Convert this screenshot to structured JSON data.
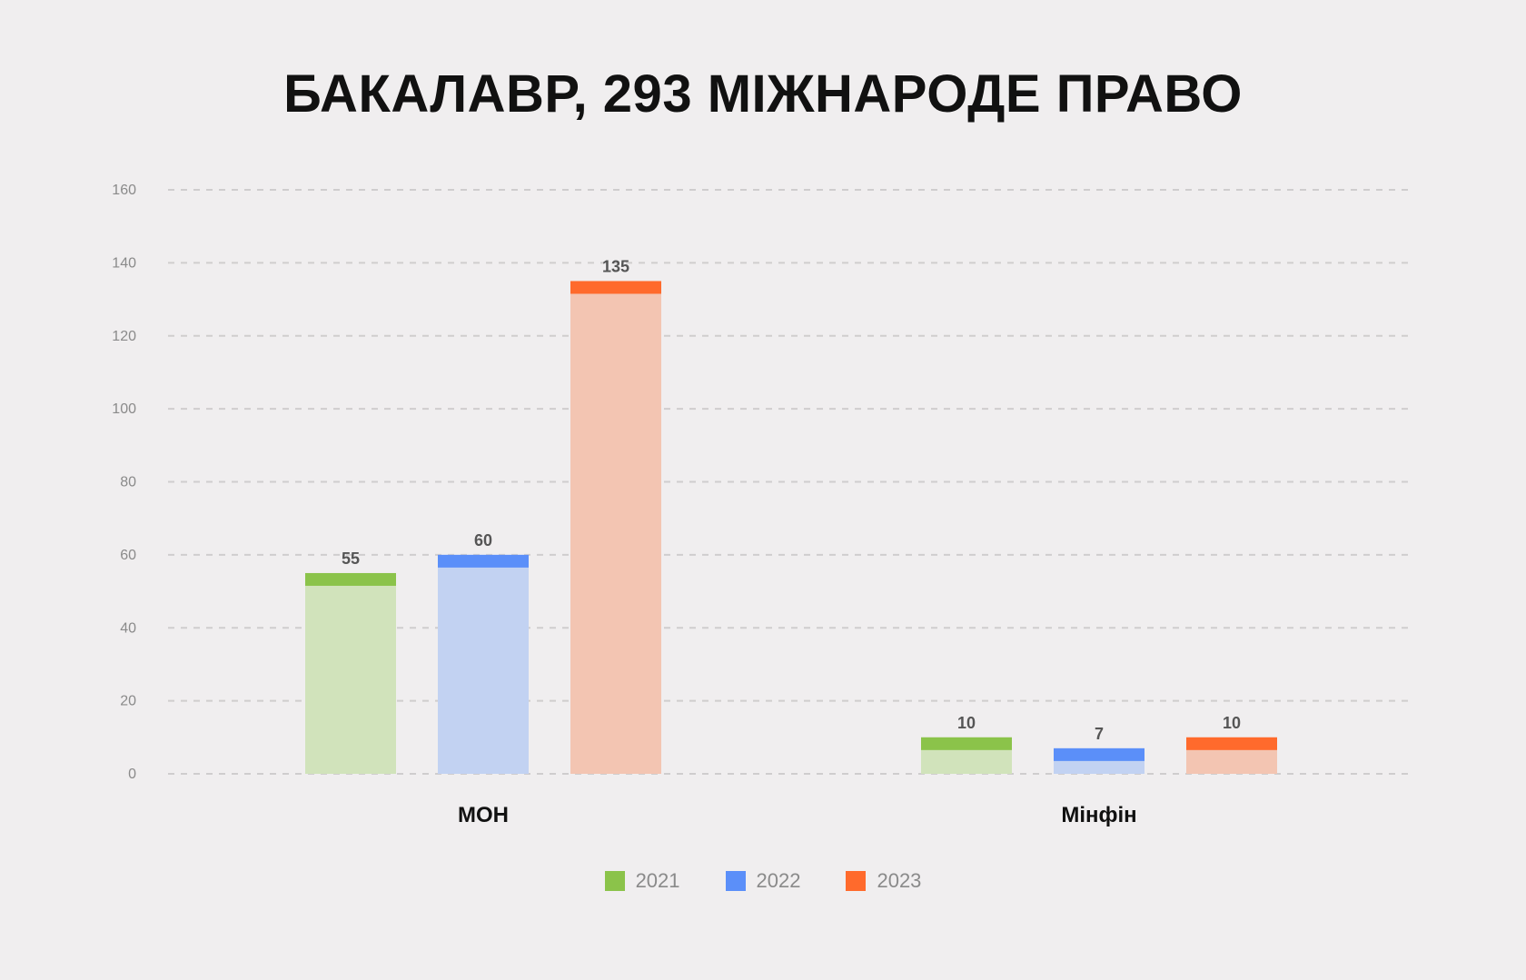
{
  "chart_data": {
    "type": "bar",
    "title": "БАКАЛАВР, 293 МІЖНАРОДЕ ПРАВО",
    "categories": [
      "МОН",
      "Мінфін"
    ],
    "series": [
      {
        "name": "2021",
        "color": "#8bc34a",
        "light_color": "#d1e3bb",
        "values": [
          55,
          10
        ],
        "labels": [
          "55",
          "10"
        ]
      },
      {
        "name": "2022",
        "color": "#5b8ff9",
        "light_color": "#c2d2f2",
        "values": [
          60,
          7
        ],
        "labels": [
          "60",
          "7"
        ]
      },
      {
        "name": "2023",
        "color": "#ff6a2c",
        "light_color": "#f3c5b2",
        "values": [
          135,
          10
        ],
        "labels": [
          "135",
          "10"
        ]
      }
    ],
    "ylim": [
      0,
      160
    ],
    "yticks": [
      "0",
      "20",
      "40",
      "60",
      "80",
      "100",
      "120",
      "140",
      "160"
    ],
    "grid": true,
    "legend_position": "bottom"
  }
}
